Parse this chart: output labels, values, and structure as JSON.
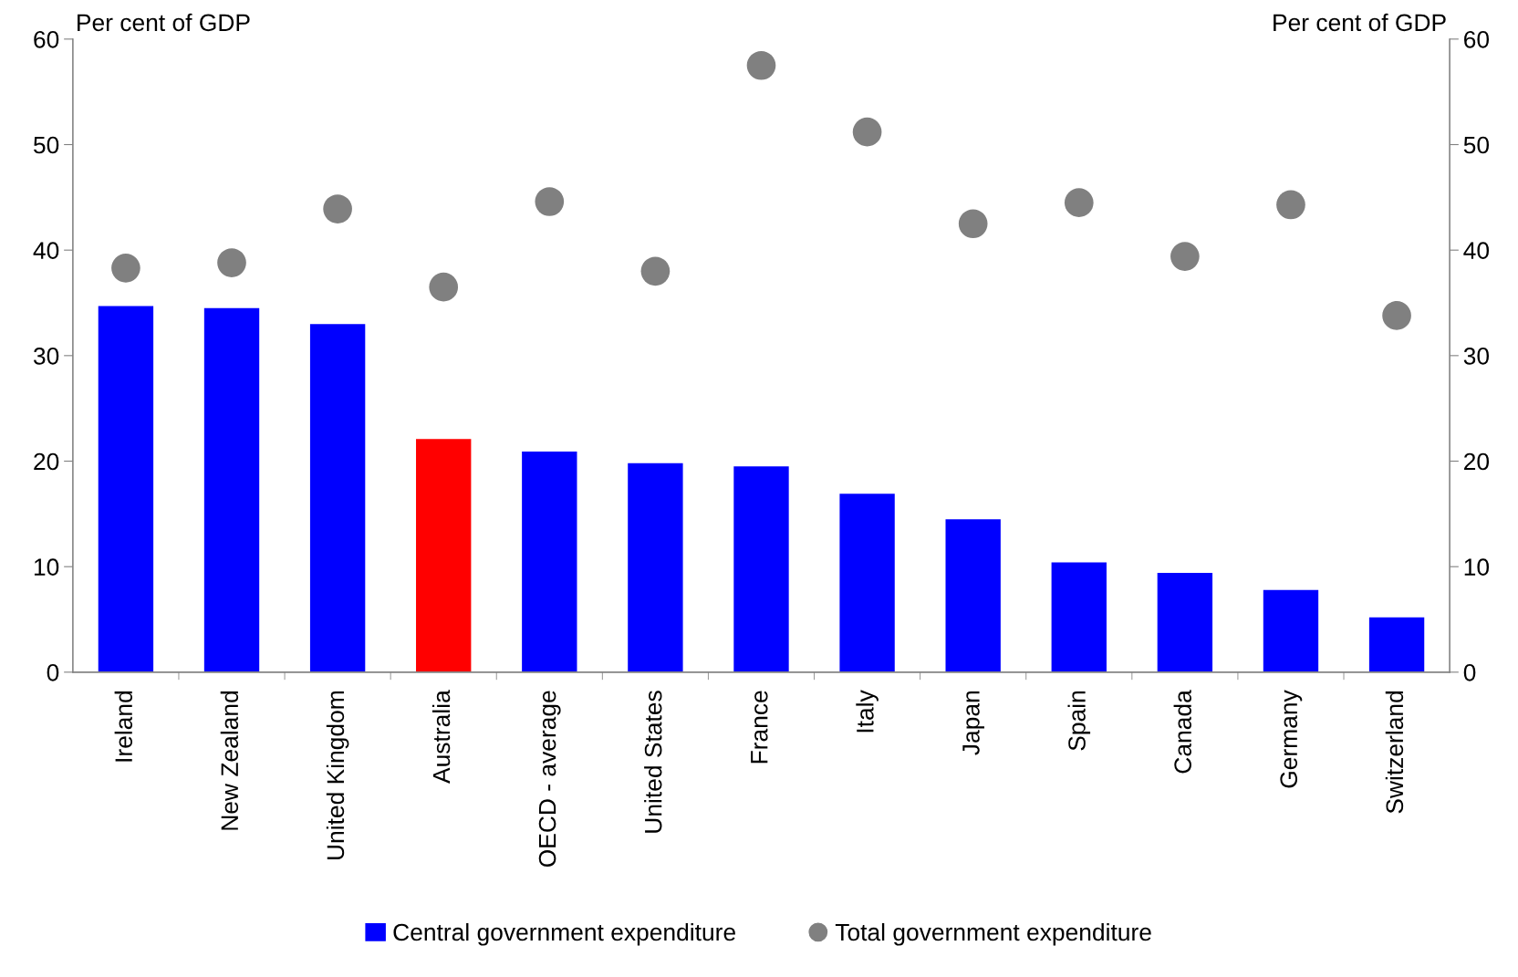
{
  "chart_data": {
    "type": "bar",
    "categories": [
      "Ireland",
      "New Zealand",
      "United Kingdom",
      "Australia",
      "OECD - average",
      "United States",
      "France",
      "Italy",
      "Japan",
      "Spain",
      "Canada",
      "Germany",
      "Switzerland"
    ],
    "series": [
      {
        "name": "Central government expenditure",
        "color": "#0000ff",
        "colors": [
          "#0000ff",
          "#0000ff",
          "#0000ff",
          "#ff0000",
          "#0000ff",
          "#0000ff",
          "#0000ff",
          "#0000ff",
          "#0000ff",
          "#0000ff",
          "#0000ff",
          "#0000ff",
          "#0000ff"
        ],
        "values": [
          34.7,
          34.5,
          33.0,
          22.1,
          20.9,
          19.8,
          19.5,
          16.9,
          14.5,
          10.4,
          9.4,
          7.8,
          5.2
        ]
      },
      {
        "name": "Total government expenditure",
        "type": "scatter",
        "color": "#808080",
        "marker": "circle",
        "values": [
          38.3,
          38.8,
          43.9,
          36.5,
          44.6,
          38.0,
          57.5,
          51.2,
          42.5,
          44.5,
          39.4,
          44.3,
          33.8
        ]
      }
    ],
    "ylabel": "Per cent of GDP",
    "y2label": "Per cent of GDP",
    "ylim": [
      0,
      60
    ],
    "yticks": [
      0,
      10,
      20,
      30,
      40,
      50,
      60
    ],
    "y2lim": [
      0,
      60
    ],
    "y2ticks": [
      0,
      10,
      20,
      30,
      40,
      50,
      60
    ],
    "grid": false,
    "legend": "bottom"
  }
}
